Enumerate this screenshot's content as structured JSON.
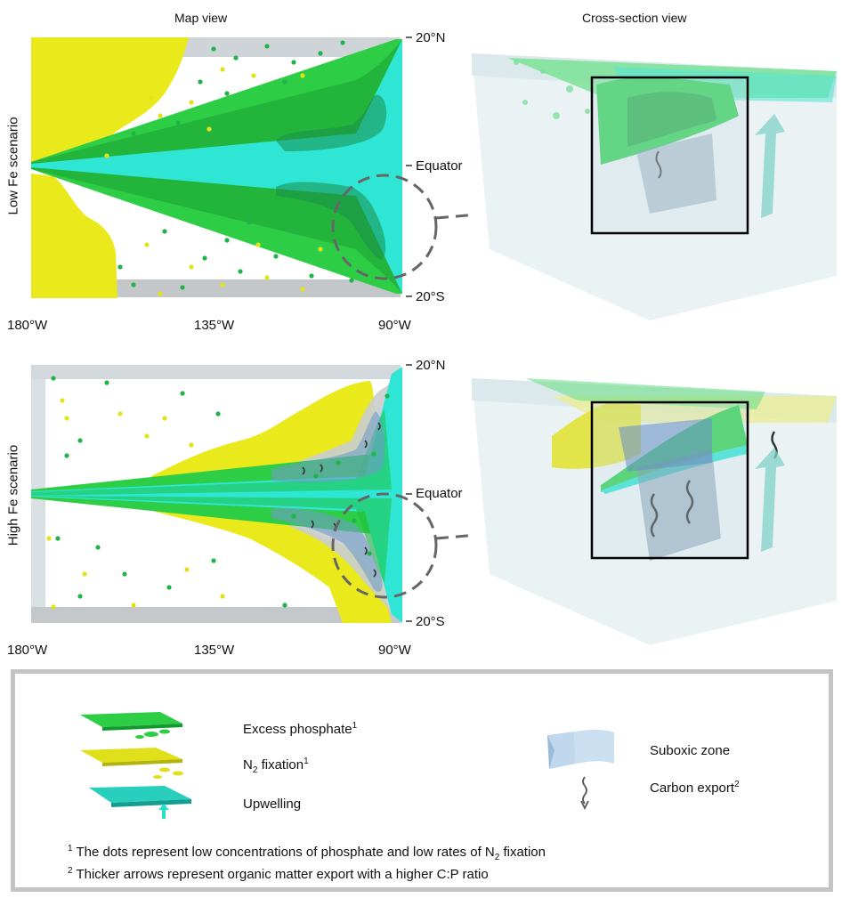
{
  "columns": {
    "map": "Map view",
    "cross": "Cross-section view"
  },
  "rows": {
    "low": {
      "label": "Low Fe scenario",
      "lat_top": "20°N",
      "lat_mid": "Equator",
      "lat_bot": "20°S",
      "lon": [
        "180°W",
        "135°W",
        "90°W"
      ]
    },
    "high": {
      "label": "High Fe scenario",
      "lat_top": "20°N",
      "lat_mid": "Equator",
      "lat_bot": "20°S",
      "lon": [
        "180°W",
        "135°W",
        "90°W"
      ]
    }
  },
  "legend": {
    "excess": "Excess phosphate",
    "excess_sup": "1",
    "n2_prefix": "N",
    "n2_sub": "2",
    "n2_suffix": " fixation",
    "n2_sup": "1",
    "upwelling": "Upwelling",
    "suboxic": "Suboxic zone",
    "carbon": "Carbon export",
    "carbon_sup": "2",
    "note1_sup": "1",
    "note1_text": " The dots represent low concentrations of phosphate and low rates of N",
    "note1_sub": "2",
    "note1_end": " fixation",
    "note2_sup": "2",
    "note2_text": " Thicker arrows represent organic matter export with a higher C:P ratio"
  },
  "colors": {
    "phosphate": "#22c43a",
    "phosphate_dark": "#118a2a",
    "nfix": "#e6e61a",
    "upwelling": "#28e0cf",
    "suboxic": "#6a8fb0",
    "frame": "#c4c4c4",
    "box": "#000000"
  }
}
